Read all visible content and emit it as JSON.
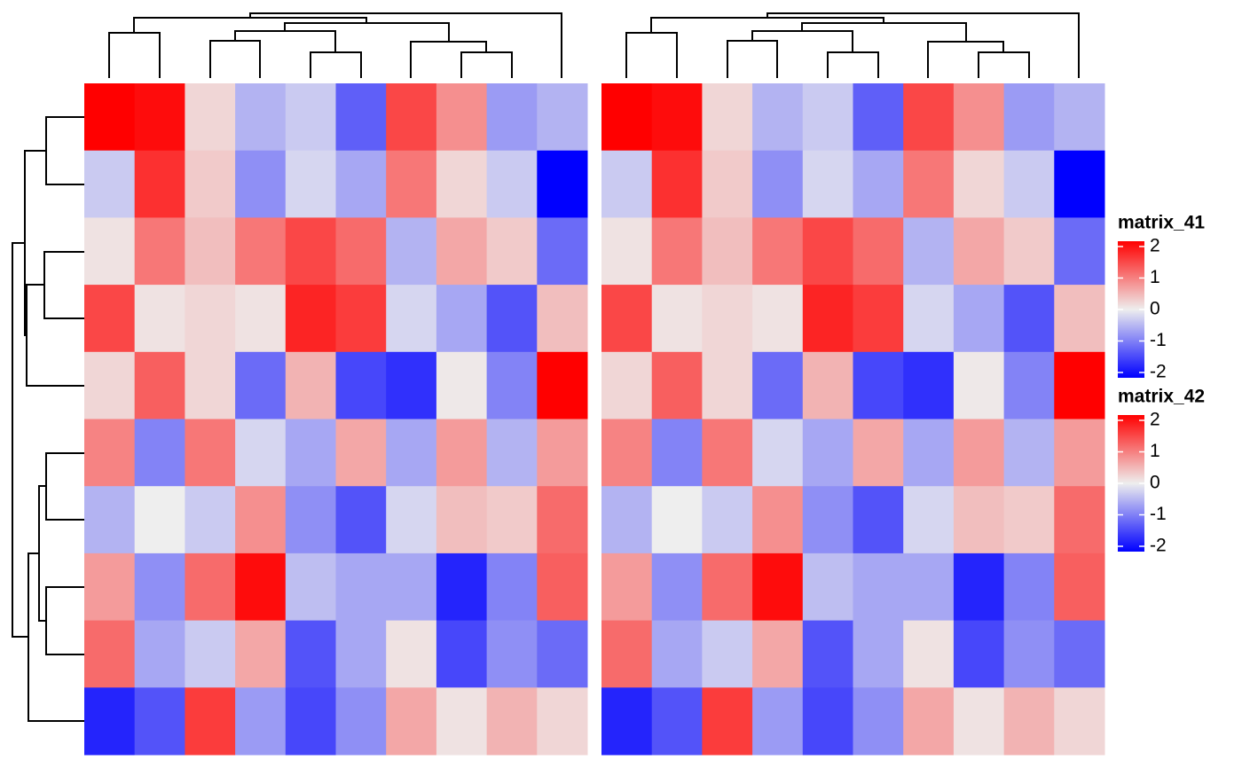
{
  "chart_data": [
    {
      "type": "heatmap",
      "legend_title": "matrix_41",
      "values": [
        [
          2.4,
          1.9,
          0.2,
          -0.5,
          -0.3,
          -1.2,
          1.4,
          0.8,
          -0.7,
          -0.5
        ],
        [
          -0.3,
          1.6,
          0.3,
          -0.8,
          -0.2,
          -0.6,
          1.0,
          0.2,
          -0.3,
          -2.2
        ],
        [
          0.1,
          1.0,
          0.4,
          1.0,
          1.4,
          1.1,
          -0.5,
          0.6,
          0.3,
          -1.1
        ],
        [
          1.4,
          0.1,
          0.2,
          0.1,
          1.7,
          1.5,
          -0.2,
          -0.6,
          -1.3,
          0.4
        ],
        [
          0.2,
          1.2,
          0.2,
          -1.1,
          0.5,
          -1.4,
          -1.6,
          0.05,
          -0.9,
          2.3
        ],
        [
          0.9,
          -0.9,
          1.0,
          -0.2,
          -0.6,
          0.6,
          -0.6,
          0.7,
          -0.5,
          0.7
        ],
        [
          -0.5,
          0.0,
          -0.3,
          0.8,
          -0.8,
          -1.3,
          -0.2,
          0.4,
          0.3,
          1.1
        ],
        [
          0.7,
          -0.8,
          1.1,
          1.9,
          -0.4,
          -0.6,
          -0.6,
          -1.7,
          -0.9,
          1.2
        ],
        [
          1.1,
          -0.6,
          -0.3,
          0.6,
          -1.3,
          -0.6,
          0.1,
          -1.4,
          -0.8,
          -1.1
        ],
        [
          -1.7,
          -1.3,
          1.5,
          -0.7,
          -1.4,
          -0.8,
          0.6,
          0.1,
          0.5,
          0.2
        ]
      ],
      "colors": [
        "#0000ff",
        "#eeeeee",
        "#ff0000"
      ],
      "clim": [
        -2,
        2
      ],
      "ticks": [
        -2,
        -1,
        0,
        1,
        2
      ]
    },
    {
      "type": "heatmap",
      "legend_title": "matrix_42",
      "values": [
        [
          2.4,
          1.9,
          0.2,
          -0.5,
          -0.3,
          -1.2,
          1.4,
          0.8,
          -0.7,
          -0.5
        ],
        [
          -0.3,
          1.6,
          0.3,
          -0.8,
          -0.2,
          -0.6,
          1.0,
          0.2,
          -0.3,
          -2.2
        ],
        [
          0.1,
          1.0,
          0.4,
          1.0,
          1.4,
          1.1,
          -0.5,
          0.6,
          0.3,
          -1.1
        ],
        [
          1.4,
          0.1,
          0.2,
          0.1,
          1.7,
          1.5,
          -0.2,
          -0.6,
          -1.3,
          0.4
        ],
        [
          0.2,
          1.2,
          0.2,
          -1.1,
          0.5,
          -1.4,
          -1.6,
          0.05,
          -0.9,
          2.3
        ],
        [
          0.9,
          -0.9,
          1.0,
          -0.2,
          -0.6,
          0.6,
          -0.6,
          0.7,
          -0.5,
          0.7
        ],
        [
          -0.5,
          0.0,
          -0.3,
          0.8,
          -0.8,
          -1.3,
          -0.2,
          0.4,
          0.3,
          1.1
        ],
        [
          0.7,
          -0.8,
          1.1,
          1.9,
          -0.4,
          -0.6,
          -0.6,
          -1.7,
          -0.9,
          1.2
        ],
        [
          1.1,
          -0.6,
          -0.3,
          0.6,
          -1.3,
          -0.6,
          0.1,
          -1.4,
          -0.8,
          -1.1
        ],
        [
          -1.7,
          -1.3,
          1.5,
          -0.7,
          -1.4,
          -0.8,
          0.6,
          0.1,
          0.5,
          0.2
        ]
      ],
      "colors": [
        "#0000ff",
        "#eeeeee",
        "#ff0000"
      ],
      "clim": [
        -2,
        2
      ],
      "ticks": [
        -2,
        -1,
        0,
        1,
        2
      ]
    }
  ]
}
